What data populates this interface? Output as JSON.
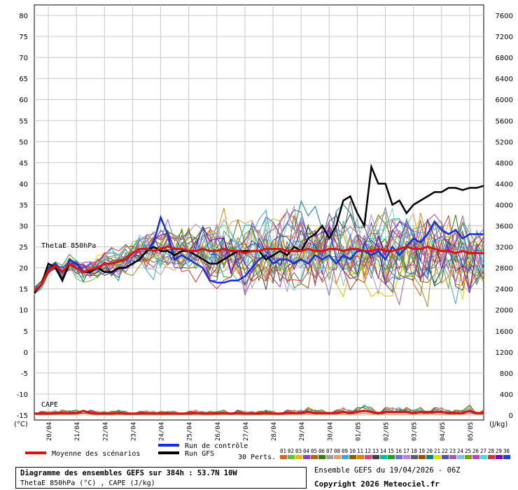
{
  "info": {
    "title": "Diagramme des ensembles GEFS sur 384h : 53.7N 10W",
    "subtitle": "ThetaE 850hPa (°C) , CAPE (J/kg)",
    "run_label": "Ensemble GEFS du 19/04/2026 - 06Z",
    "copyright": "Copyright 2026 Meteociel.fr"
  },
  "legend": {
    "mean_label": "Moyenne des scénarios",
    "control_label": "Run de contrôle",
    "gfs_label": "Run GFS",
    "perts_label": "30 Perts.",
    "pert_numbers": [
      "01",
      "02",
      "03",
      "04",
      "05",
      "06",
      "07",
      "08",
      "09",
      "10",
      "11",
      "12",
      "13",
      "14",
      "15",
      "16",
      "17",
      "18",
      "19",
      "20",
      "21",
      "22",
      "23",
      "24",
      "25",
      "26",
      "27",
      "28",
      "29",
      "30"
    ],
    "pert_colors": [
      "#e06020",
      "#60c040",
      "#e0c000",
      "#9040c0",
      "#c06000",
      "#308000",
      "#a0a0a0",
      "#e0a060",
      "#40a0e0",
      "#806000",
      "#e08000",
      "#e04080",
      "#404040",
      "#00c0a0",
      "#20a020",
      "#7070d0",
      "#c080e0",
      "#606060",
      "#a05000",
      "#008080",
      "#e0e000",
      "#5050c0",
      "#a060a0",
      "#80c0e0",
      "#80a000",
      "#c040c0",
      "#40e0e0",
      "#e03030",
      "#8000c0",
      "#2040e0"
    ]
  },
  "chart_data": {
    "type": "line",
    "left_axis_label": "(°C)",
    "right_axis_label": "(J/kg)",
    "left_ylim": [
      -15,
      80
    ],
    "right_ylim": [
      0,
      7600
    ],
    "left_ticks": [
      80,
      75,
      70,
      65,
      60,
      55,
      50,
      45,
      40,
      35,
      30,
      25,
      20,
      15,
      10,
      5,
      0,
      -5,
      -10,
      -15
    ],
    "right_ticks": [
      7600,
      7200,
      6800,
      6400,
      6000,
      5600,
      5200,
      4800,
      4400,
      4000,
      3600,
      3200,
      2800,
      2400,
      2000,
      1600,
      1200,
      800,
      400,
      0
    ],
    "x_tick_labels": [
      "20/04",
      "21/04",
      "22/04",
      "23/04",
      "24/04",
      "25/04",
      "26/04",
      "27/04",
      "28/04",
      "29/04",
      "30/04",
      "01/05",
      "02/05",
      "03/05",
      "04/05",
      "05/05"
    ],
    "x_hours": [
      0,
      6,
      12,
      18,
      24,
      30,
      36,
      42,
      48,
      54,
      60,
      66,
      72,
      78,
      84,
      90,
      96,
      102,
      108,
      114,
      120,
      126,
      132,
      138,
      144,
      150,
      156,
      162,
      168,
      174,
      180,
      186,
      192,
      198,
      204,
      210,
      216,
      222,
      228,
      234,
      240,
      246,
      252,
      258,
      264,
      270,
      276,
      282,
      288,
      294,
      300,
      306,
      312,
      318,
      324,
      330,
      336,
      342,
      348,
      354,
      360,
      366,
      372,
      378,
      384
    ],
    "thetae_label": "ThetaE 850hPa",
    "cape_label": "CAPE",
    "series": [
      {
        "name": "Moyenne des scénarios",
        "role": "mean",
        "color": "#e01010",
        "values": [
          14.5,
          16,
          19.5,
          20.5,
          19,
          21,
          20,
          19,
          19.5,
          20,
          21,
          21,
          21.5,
          22,
          23.5,
          24.5,
          24.5,
          24,
          24.5,
          25,
          24.5,
          24.5,
          24,
          24,
          24.5,
          24,
          24,
          24.5,
          24,
          24,
          23.5,
          24,
          24,
          24.5,
          24.5,
          24.5,
          24,
          24,
          24,
          24.5,
          24,
          24,
          24.5,
          24.5,
          24,
          24.5,
          24.5,
          24,
          24,
          24.5,
          24,
          24,
          24.5,
          25,
          24.5,
          24.5,
          25,
          24.5,
          24,
          24,
          23.5,
          24,
          23.5,
          23.5,
          23.5
        ]
      },
      {
        "name": "Run de contrôle",
        "role": "control",
        "color": "#1030e0",
        "values": [
          14,
          16,
          20,
          21,
          17,
          22,
          21,
          19,
          19,
          20,
          19,
          19,
          20,
          20,
          21,
          22,
          24,
          26,
          32,
          28,
          22,
          23,
          22,
          21,
          20,
          17,
          16.5,
          16.5,
          17,
          17,
          18,
          20,
          22,
          23,
          21,
          22,
          22,
          21,
          22,
          21,
          23,
          22,
          23,
          21,
          23,
          22,
          24,
          24,
          23,
          24,
          22,
          25,
          23,
          25,
          27,
          26,
          28,
          31,
          29,
          28,
          29,
          27,
          28,
          28,
          28
        ]
      },
      {
        "name": "Run GFS",
        "role": "gfs",
        "color": "#000000",
        "values": [
          14,
          16,
          21,
          20,
          17,
          21,
          20,
          19,
          19,
          20,
          19,
          19,
          20,
          20,
          21,
          22,
          24,
          25,
          24,
          24,
          23,
          24,
          24,
          23,
          22,
          21,
          21,
          22,
          23,
          24,
          24,
          24,
          24,
          22,
          23,
          24,
          23,
          25,
          24,
          27,
          28,
          30,
          27,
          30,
          36,
          37,
          33,
          30,
          44,
          40,
          40,
          35,
          36,
          33,
          35,
          36,
          37,
          38,
          38,
          39,
          39,
          38.5,
          39,
          39,
          39.5
        ]
      }
    ],
    "cape_mean_values": [
      30,
      30,
      30,
      35,
      40,
      35,
      40,
      80,
      40,
      30,
      30,
      30,
      40,
      30,
      30,
      30,
      35,
      30,
      30,
      30,
      30,
      30,
      30,
      40,
      30,
      30,
      30,
      40,
      30,
      40,
      30,
      30,
      30,
      40,
      30,
      30,
      40,
      40,
      40,
      60,
      40,
      40,
      40,
      40,
      60,
      40,
      60,
      80,
      60,
      40,
      60,
      60,
      60,
      60,
      40,
      60,
      60,
      60,
      60,
      40,
      40,
      40,
      80,
      40,
      40
    ],
    "grid": true,
    "legend_position": "bottom"
  }
}
